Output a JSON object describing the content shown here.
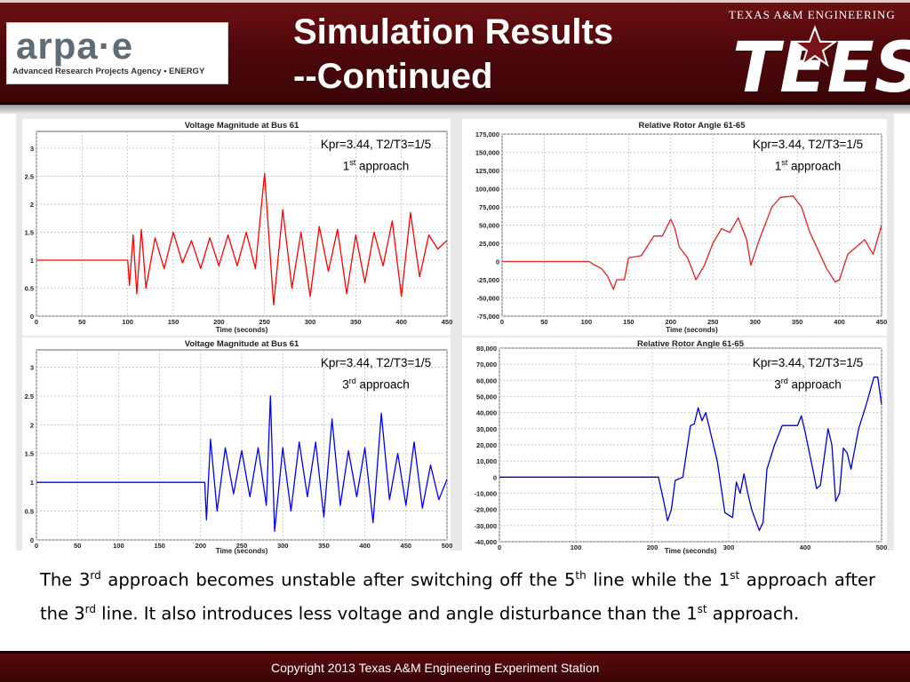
{
  "header": {
    "title_line1": "Simulation Results",
    "title_line2": "--Continued",
    "logo_word": "arpa·e",
    "logo_subtitle": "Advanced Research Projects Agency • ENERGY",
    "tees_tagline": "TEXAS A&M ENGINEERING",
    "tees_word": "TEES"
  },
  "charts": [
    {
      "id": "voltage-1st",
      "annotation_line1": "Kpr=3.44, T2/T3=1/5",
      "annotation_num": "1",
      "annotation_sup": "st",
      "annotation_word": "approach"
    },
    {
      "id": "angle-1st",
      "annotation_line1": "Kpr=3.44, T2/T3=1/5",
      "annotation_num": "1",
      "annotation_sup": "st",
      "annotation_word": "approach"
    },
    {
      "id": "voltage-3rd",
      "annotation_line1": "Kpr=3.44, T2/T3=1/5",
      "annotation_num": "3",
      "annotation_sup": "rd",
      "annotation_word": "approach"
    },
    {
      "id": "angle-3rd",
      "annotation_line1": "Kpr=3.44, T2/T3=1/5",
      "annotation_num": "3",
      "annotation_sup": "rd",
      "annotation_word": "approach"
    }
  ],
  "chart_data": [
    {
      "type": "line",
      "title": "Voltage Magnitude at Bus 61",
      "xlabel": "Time (seconds)",
      "ylabel": "",
      "xlim": [
        0,
        450
      ],
      "ylim": [
        0,
        3.3
      ],
      "xticks": [
        0,
        50,
        100,
        150,
        200,
        250,
        300,
        350,
        400,
        450
      ],
      "yticks": [
        0,
        0.5,
        1,
        1.5,
        2,
        2.5,
        3
      ],
      "ytick_labels": [
        "0",
        "0.5",
        "1",
        "1.5",
        "2",
        "2.5",
        "3"
      ],
      "color": "#ff0000",
      "grid": true,
      "series": [
        {
          "x": [
            0,
            100,
            102,
            106,
            110,
            115,
            120,
            130,
            140,
            150,
            160,
            170,
            180,
            190,
            200,
            210,
            220,
            230,
            240,
            250,
            260,
            270,
            280,
            290,
            300,
            310,
            320,
            330,
            340,
            350,
            360,
            370,
            380,
            390,
            400,
            410,
            420,
            430,
            440,
            450
          ],
          "y": [
            1,
            1,
            0.55,
            1.45,
            0.4,
            1.55,
            0.5,
            1.4,
            0.85,
            1.5,
            0.95,
            1.35,
            0.85,
            1.4,
            0.9,
            1.45,
            0.9,
            1.5,
            0.85,
            2.55,
            0.2,
            1.9,
            0.5,
            1.5,
            0.35,
            1.6,
            0.8,
            1.55,
            0.4,
            1.45,
            0.6,
            1.5,
            0.9,
            1.7,
            0.35,
            1.85,
            0.7,
            1.45,
            1.2,
            1.35
          ]
        }
      ]
    },
    {
      "type": "line",
      "title": "Relative Rotor Angle 61-65",
      "xlabel": "Time (seconds)",
      "ylabel": "",
      "xlim": [
        0,
        450
      ],
      "ylim": [
        -75000,
        175000
      ],
      "xticks": [
        0,
        50,
        100,
        150,
        200,
        250,
        300,
        350,
        400,
        450
      ],
      "yticks": [
        -75000,
        -50000,
        -25000,
        0,
        25000,
        50000,
        75000,
        100000,
        125000,
        150000,
        175000
      ],
      "ytick_labels": [
        "-75,000",
        "-50,000",
        "-25,000",
        "0",
        "25,000",
        "50,000",
        "75,000",
        "100,000",
        "125,000",
        "150,000",
        "175,000"
      ],
      "color": "#e02020",
      "grid": true,
      "series": [
        {
          "x": [
            0,
            103,
            110,
            118,
            125,
            132,
            136,
            145,
            150,
            165,
            180,
            190,
            200,
            205,
            210,
            220,
            230,
            240,
            250,
            255,
            260,
            270,
            280,
            290,
            295,
            305,
            315,
            320,
            330,
            345,
            355,
            365,
            375,
            385,
            395,
            400,
            410,
            420,
            430,
            440,
            445,
            450
          ],
          "y": [
            0,
            0,
            -5000,
            -10000,
            -20000,
            -38000,
            -25000,
            -25000,
            5000,
            8000,
            35000,
            35000,
            58000,
            45000,
            20000,
            5000,
            -25000,
            -5000,
            25000,
            35000,
            45000,
            40000,
            60000,
            30000,
            -5000,
            30000,
            60000,
            75000,
            88000,
            90000,
            75000,
            40000,
            15000,
            -10000,
            -28000,
            -25000,
            10000,
            20000,
            30000,
            10000,
            30000,
            50000
          ]
        }
      ]
    },
    {
      "type": "line",
      "title": "Voltage Magnitude at Bus 61",
      "xlabel": "Time (seconds)",
      "ylabel": "",
      "xlim": [
        0,
        500
      ],
      "ylim": [
        0,
        3.3
      ],
      "xticks": [
        0,
        50,
        100,
        150,
        200,
        250,
        300,
        350,
        400,
        450,
        500
      ],
      "yticks": [
        0,
        0.5,
        1,
        1.5,
        2,
        2.5,
        3
      ],
      "ytick_labels": [
        "0",
        "0.5",
        "1",
        "1.5",
        "2",
        "2.5",
        "3"
      ],
      "color": "#0000ff",
      "grid": true,
      "series": [
        {
          "x": [
            0,
            205,
            207,
            212,
            220,
            230,
            240,
            250,
            260,
            270,
            280,
            285,
            290,
            300,
            310,
            320,
            330,
            340,
            350,
            360,
            370,
            380,
            390,
            400,
            410,
            420,
            430,
            440,
            450,
            460,
            470,
            480,
            490,
            500
          ],
          "y": [
            1,
            1,
            0.35,
            1.75,
            0.5,
            1.6,
            0.8,
            1.55,
            0.75,
            1.6,
            0.6,
            2.5,
            0.15,
            1.6,
            0.5,
            1.7,
            0.75,
            1.7,
            0.4,
            2.1,
            0.6,
            1.55,
            0.75,
            1.6,
            0.3,
            2.2,
            0.7,
            1.5,
            0.6,
            1.7,
            0.55,
            1.3,
            0.7,
            1.05
          ]
        }
      ]
    },
    {
      "type": "line",
      "title": "Relative Rotor Angle 61-65",
      "xlabel": "Time (seconds)",
      "ylabel": "",
      "xlim": [
        0,
        500
      ],
      "ylim": [
        -40000,
        80000
      ],
      "xticks": [
        0,
        100,
        200,
        300,
        400,
        500
      ],
      "yticks": [
        -40000,
        -30000,
        -20000,
        -10000,
        0,
        10000,
        20000,
        30000,
        40000,
        50000,
        60000,
        70000,
        80000
      ],
      "ytick_labels": [
        "-40,000",
        "-30,000",
        "-20,000",
        "-10,000",
        "0",
        "10,000",
        "20,000",
        "30,000",
        "40,000",
        "50,000",
        "60,000",
        "70,000",
        "80,000"
      ],
      "color": "#0000cc",
      "grid": true,
      "series": [
        {
          "x": [
            0,
            208,
            215,
            220,
            225,
            230,
            240,
            250,
            255,
            260,
            265,
            270,
            275,
            285,
            295,
            305,
            310,
            315,
            320,
            325,
            330,
            340,
            345,
            350,
            360,
            370,
            390,
            395,
            400,
            410,
            415,
            420,
            430,
            435,
            440,
            445,
            450,
            455,
            460,
            470,
            480,
            490,
            495,
            500
          ],
          "y": [
            0,
            0,
            -15000,
            -27000,
            -20000,
            -2000,
            0,
            32000,
            33000,
            43000,
            35000,
            40000,
            30000,
            10000,
            -22000,
            -25000,
            -3000,
            -10000,
            2000,
            -10000,
            -20000,
            -33000,
            -28000,
            5000,
            20000,
            32000,
            32000,
            38000,
            28000,
            5000,
            -7000,
            -5000,
            30000,
            20000,
            -15000,
            -10000,
            18000,
            15000,
            5000,
            30000,
            45000,
            62000,
            62000,
            45000
          ]
        }
      ]
    }
  ],
  "caption": {
    "p1": "The 3",
    "s1": "rd",
    "p2": " approach becomes unstable after switching off the 5",
    "s2": "th",
    "p3": " line while the 1",
    "s3": "st",
    "p4": " approach after the 3",
    "s4": "rd",
    "p5": " line. It also introduces less  voltage  and angle disturbance than the 1",
    "s5": "st",
    "p6": " approach."
  },
  "footer": {
    "text": "Copyright 2013    Texas A&M Engineering  Experiment Station"
  }
}
